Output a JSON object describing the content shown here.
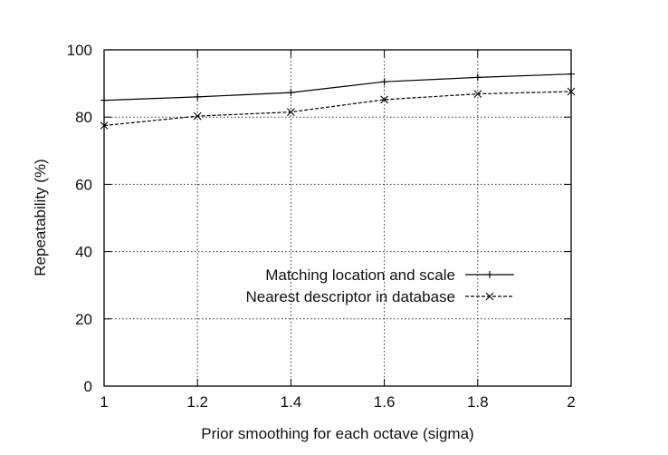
{
  "chart_data": {
    "type": "line",
    "title": "",
    "xlabel": "Prior smoothing for each octave (sigma)",
    "ylabel": "Repeatability (%)",
    "xlim": [
      1,
      2
    ],
    "ylim": [
      0,
      100
    ],
    "x": [
      1,
      1.2,
      1.4,
      1.6,
      1.8,
      2
    ],
    "x_ticks": [
      "1",
      "1.2",
      "1.4",
      "1.6",
      "1.8",
      "2"
    ],
    "y_ticks": [
      "0",
      "20",
      "40",
      "60",
      "80",
      "100"
    ],
    "grid": true,
    "legend_position": "center-right",
    "series": [
      {
        "name": "Matching location and scale",
        "values": [
          85,
          86,
          87.3,
          90.5,
          91.8,
          92.8
        ],
        "marker": "plus",
        "line_style": "solid",
        "color": "#000000"
      },
      {
        "name": "Nearest descriptor in database",
        "values": [
          77.5,
          80.3,
          81.5,
          85.2,
          86.9,
          87.6
        ],
        "marker": "cross",
        "line_style": "dashed",
        "color": "#000000"
      }
    ]
  }
}
